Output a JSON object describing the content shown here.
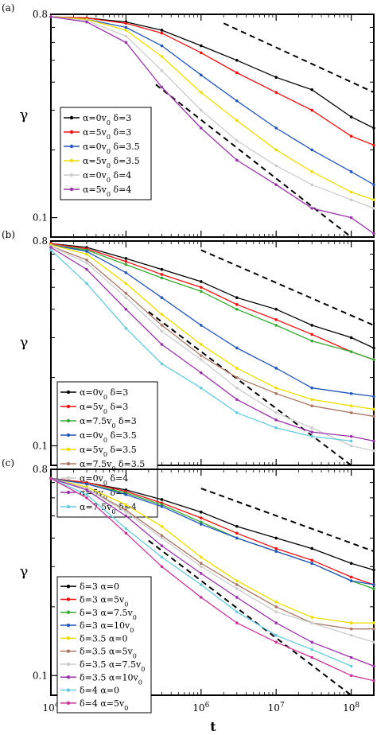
{
  "figure": {
    "xlabel": "t"
  },
  "chart_data": [
    {
      "type": "line",
      "panel_label": "(a)",
      "ylabel": "γ",
      "xscale": "log",
      "yscale": "log",
      "xlim": [
        10000,
        200000000
      ],
      "ylim": [
        0.082,
        0.8
      ],
      "x_ticks": [
        "10^4",
        "10^5",
        "10^6",
        "10^7",
        "10^8"
      ],
      "y_ticks": [
        0.1,
        0.8
      ],
      "legend_position": "lower-left",
      "series": [
        {
          "name": "α=0v₀  δ=3",
          "color": "#000000",
          "x": [
            10000,
            30000,
            100000,
            300000,
            1000000,
            3000000,
            10000000,
            30000000,
            100000000,
            200000000
          ],
          "y": [
            0.78,
            0.77,
            0.74,
            0.68,
            0.58,
            0.5,
            0.42,
            0.37,
            0.28,
            0.25
          ]
        },
        {
          "name": "α=5v₀  δ=3",
          "color": "#ee1111",
          "x": [
            10000,
            30000,
            100000,
            300000,
            1000000,
            3000000,
            10000000,
            30000000,
            100000000,
            200000000
          ],
          "y": [
            0.78,
            0.77,
            0.73,
            0.66,
            0.54,
            0.44,
            0.36,
            0.3,
            0.23,
            0.21
          ]
        },
        {
          "name": "α=0v₀  δ=3.5",
          "color": "#2255bb",
          "x": [
            10000,
            30000,
            100000,
            300000,
            1000000,
            3000000,
            10000000,
            30000000,
            100000000,
            200000000
          ],
          "y": [
            0.78,
            0.76,
            0.7,
            0.58,
            0.43,
            0.33,
            0.25,
            0.2,
            0.16,
            0.14
          ]
        },
        {
          "name": "α=5v₀  δ=3.5",
          "color": "#eedd00",
          "x": [
            10000,
            30000,
            100000,
            300000,
            1000000,
            3000000,
            10000000,
            30000000,
            100000000,
            200000000
          ],
          "y": [
            0.78,
            0.76,
            0.68,
            0.52,
            0.36,
            0.27,
            0.2,
            0.16,
            0.13,
            0.12
          ]
        },
        {
          "name": "α=0v₀  δ=4",
          "color": "#cccccc",
          "x": [
            10000,
            30000,
            100000,
            300000,
            1000000,
            3000000,
            10000000,
            30000000,
            100000000,
            200000000
          ],
          "y": [
            0.78,
            0.75,
            0.64,
            0.45,
            0.3,
            0.22,
            0.17,
            0.14,
            0.12,
            0.11
          ]
        },
        {
          "name": "α=5v₀  δ=4",
          "color": "#9933aa",
          "x": [
            10000,
            30000,
            100000,
            300000,
            1000000,
            3000000,
            10000000,
            30000000,
            100000000,
            200000000
          ],
          "y": [
            0.78,
            0.74,
            0.6,
            0.38,
            0.25,
            0.18,
            0.14,
            0.11,
            0.1,
            0.085
          ]
        }
      ],
      "guides": [
        {
          "x": [
            2000000,
            200000000
          ],
          "y": [
            0.73,
            0.36
          ]
        },
        {
          "x": [
            250000,
            100000000
          ],
          "y": [
            0.39,
            0.082
          ]
        }
      ]
    },
    {
      "type": "line",
      "panel_label": "(b)",
      "ylabel": "γ",
      "xscale": "log",
      "yscale": "log",
      "xlim": [
        10000,
        200000000
      ],
      "ylim": [
        0.082,
        0.8
      ],
      "x_ticks": [
        "10^4",
        "10^5",
        "10^6",
        "10^7",
        "10^8"
      ],
      "y_ticks": [
        0.1,
        0.8
      ],
      "legend_position": "lower-left",
      "series": [
        {
          "name": "α=0v₀  δ=3",
          "color": "#000000",
          "x": [
            10000,
            30000,
            100000,
            300000,
            1000000,
            3000000,
            10000000,
            30000000,
            100000000,
            200000000
          ],
          "y": [
            0.78,
            0.75,
            0.67,
            0.6,
            0.53,
            0.45,
            0.4,
            0.34,
            0.3,
            0.27
          ]
        },
        {
          "name": "α=5v₀  δ=3",
          "color": "#ee1111",
          "x": [
            10000,
            30000,
            100000,
            300000,
            1000000,
            3000000,
            10000000,
            30000000,
            100000000,
            200000000
          ],
          "y": [
            0.78,
            0.74,
            0.65,
            0.57,
            0.5,
            0.42,
            0.36,
            0.31,
            0.26,
            0.24
          ]
        },
        {
          "name": "α=7.5v₀  δ=3",
          "color": "#33aa33",
          "x": [
            10000,
            30000,
            100000,
            300000,
            1000000,
            3000000,
            10000000,
            30000000,
            100000000,
            200000000
          ],
          "y": [
            0.77,
            0.73,
            0.63,
            0.55,
            0.48,
            0.4,
            0.34,
            0.29,
            0.26,
            0.24
          ]
        },
        {
          "name": "α=0v₀  δ=3.5",
          "color": "#2255bb",
          "x": [
            10000,
            30000,
            100000,
            300000,
            1000000,
            3000000,
            10000000,
            30000000,
            100000000,
            200000000
          ],
          "y": [
            0.77,
            0.72,
            0.58,
            0.45,
            0.34,
            0.27,
            0.22,
            0.18,
            0.17,
            0.165
          ]
        },
        {
          "name": "α=5v₀  δ=3.5",
          "color": "#eedd00",
          "x": [
            10000,
            30000,
            100000,
            300000,
            1000000,
            3000000,
            10000000,
            30000000,
            100000000,
            200000000
          ],
          "y": [
            0.77,
            0.7,
            0.52,
            0.38,
            0.28,
            0.22,
            0.18,
            0.16,
            0.15,
            0.145
          ]
        },
        {
          "name": "α=7.5v₀  δ=3.5",
          "color": "#aa7766",
          "x": [
            10000,
            30000,
            100000,
            300000,
            1000000,
            3000000,
            10000000,
            30000000,
            100000000,
            200000000
          ],
          "y": [
            0.76,
            0.66,
            0.47,
            0.34,
            0.25,
            0.2,
            0.17,
            0.15,
            0.14,
            0.135
          ]
        },
        {
          "name": "α=0v₀  δ=4",
          "color": "#cccccc",
          "x": [
            10000,
            30000,
            100000,
            300000,
            1000000,
            3000000,
            10000000,
            30000000,
            100000000,
            200000000
          ],
          "y": [
            0.76,
            0.64,
            0.45,
            0.32,
            0.24,
            0.18,
            0.14,
            0.12,
            0.1,
            0.095
          ]
        },
        {
          "name": "α=5v₀  δ=4",
          "color": "#9933aa",
          "x": [
            10000,
            30000,
            100000,
            300000,
            1000000,
            3000000,
            10000000,
            30000000,
            100000000,
            200000000
          ],
          "y": [
            0.75,
            0.6,
            0.4,
            0.28,
            0.21,
            0.16,
            0.13,
            0.115,
            0.11,
            0.105
          ]
        },
        {
          "name": "α=7.5v₀  δ=4",
          "color": "#66ccdd",
          "x": [
            10000,
            30000,
            100000,
            300000,
            1000000,
            3000000,
            10000000,
            30000000,
            100000000
          ],
          "y": [
            0.73,
            0.52,
            0.33,
            0.23,
            0.18,
            0.14,
            0.12,
            0.11,
            0.105
          ]
        }
      ],
      "guides": [
        {
          "x": [
            1000000,
            200000000
          ],
          "y": [
            0.73,
            0.34
          ]
        },
        {
          "x": [
            200000,
            100000000
          ],
          "y": [
            0.39,
            0.082
          ]
        }
      ]
    },
    {
      "type": "line",
      "panel_label": "(c)",
      "ylabel": "γ",
      "xscale": "log",
      "yscale": "log",
      "xlim": [
        10000,
        200000000
      ],
      "ylim": [
        0.082,
        0.8
      ],
      "x_ticks": [
        "10^4",
        "10^5",
        "10^6",
        "10^7",
        "10^8"
      ],
      "y_ticks": [
        0.1,
        0.8
      ],
      "legend_position": "lower-left",
      "series": [
        {
          "name": "δ=3  α=0",
          "color": "#000000",
          "x": [
            10000,
            30000,
            100000,
            300000,
            1000000,
            3000000,
            10000000,
            30000000,
            100000000,
            200000000
          ],
          "y": [
            0.73,
            0.7,
            0.65,
            0.59,
            0.52,
            0.45,
            0.4,
            0.36,
            0.31,
            0.29
          ]
        },
        {
          "name": "δ=3  α=5v₀",
          "color": "#ee1111",
          "x": [
            10000,
            30000,
            100000,
            300000,
            1000000,
            3000000,
            10000000,
            30000000,
            100000000,
            200000000
          ],
          "y": [
            0.73,
            0.7,
            0.64,
            0.57,
            0.49,
            0.42,
            0.36,
            0.32,
            0.27,
            0.25
          ]
        },
        {
          "name": "δ=3  α=7.5v₀",
          "color": "#33aa33",
          "x": [
            10000,
            30000,
            100000,
            300000,
            1000000,
            3000000,
            10000000,
            30000000,
            100000000,
            200000000
          ],
          "y": [
            0.73,
            0.69,
            0.63,
            0.56,
            0.47,
            0.4,
            0.35,
            0.31,
            0.26,
            0.24
          ]
        },
        {
          "name": "δ=3  α=10v₀",
          "color": "#2255bb",
          "x": [
            10000,
            30000,
            100000,
            300000,
            1000000,
            3000000,
            10000000,
            30000000,
            100000000,
            200000000
          ],
          "y": [
            0.73,
            0.69,
            0.62,
            0.55,
            0.46,
            0.4,
            0.35,
            0.31,
            0.26,
            0.25
          ]
        },
        {
          "name": "δ=3.5  α=0",
          "color": "#eedd00",
          "x": [
            10000,
            30000,
            100000,
            300000,
            1000000,
            3000000,
            10000000,
            30000000,
            100000000,
            200000000
          ],
          "y": [
            0.73,
            0.67,
            0.56,
            0.45,
            0.33,
            0.26,
            0.21,
            0.18,
            0.17,
            0.17
          ]
        },
        {
          "name": "δ=3.5  α=5v₀",
          "color": "#aa7766",
          "x": [
            10000,
            30000,
            100000,
            300000,
            1000000,
            3000000,
            10000000,
            30000000,
            100000000,
            200000000
          ],
          "y": [
            0.73,
            0.66,
            0.53,
            0.41,
            0.31,
            0.25,
            0.2,
            0.17,
            0.16,
            0.16
          ]
        },
        {
          "name": "δ=3.5  α=7.5v₀",
          "color": "#cccccc",
          "x": [
            10000,
            30000,
            100000,
            300000,
            1000000,
            3000000,
            10000000,
            30000000,
            100000000,
            200000000
          ],
          "y": [
            0.73,
            0.66,
            0.52,
            0.4,
            0.3,
            0.24,
            0.19,
            0.17,
            0.15,
            0.14
          ]
        },
        {
          "name": "δ=3.5  α=10v₀",
          "color": "#9933aa",
          "x": [
            10000,
            30000,
            100000,
            300000,
            1000000,
            3000000,
            10000000,
            30000000,
            100000000,
            200000000
          ],
          "y": [
            0.73,
            0.65,
            0.5,
            0.37,
            0.28,
            0.22,
            0.17,
            0.14,
            0.12,
            0.11
          ]
        },
        {
          "name": "δ=4  α=0",
          "color": "#66ccdd",
          "x": [
            10000,
            30000,
            100000,
            300000,
            1000000,
            3000000,
            10000000,
            30000000,
            100000000
          ],
          "y": [
            0.73,
            0.62,
            0.44,
            0.33,
            0.25,
            0.19,
            0.15,
            0.13,
            0.11
          ]
        },
        {
          "name": "δ=4  α=5v₀",
          "color": "#cc3399",
          "x": [
            10000,
            30000,
            100000,
            300000,
            1000000,
            3000000,
            10000000,
            30000000,
            100000000,
            200000000
          ],
          "y": [
            0.73,
            0.6,
            0.42,
            0.3,
            0.22,
            0.17,
            0.14,
            0.12,
            0.1,
            0.095
          ]
        }
      ],
      "guides": [
        {
          "x": [
            1000000,
            200000000
          ],
          "y": [
            0.66,
            0.35
          ]
        },
        {
          "x": [
            200000,
            100000000
          ],
          "y": [
            0.39,
            0.082
          ]
        }
      ]
    }
  ]
}
